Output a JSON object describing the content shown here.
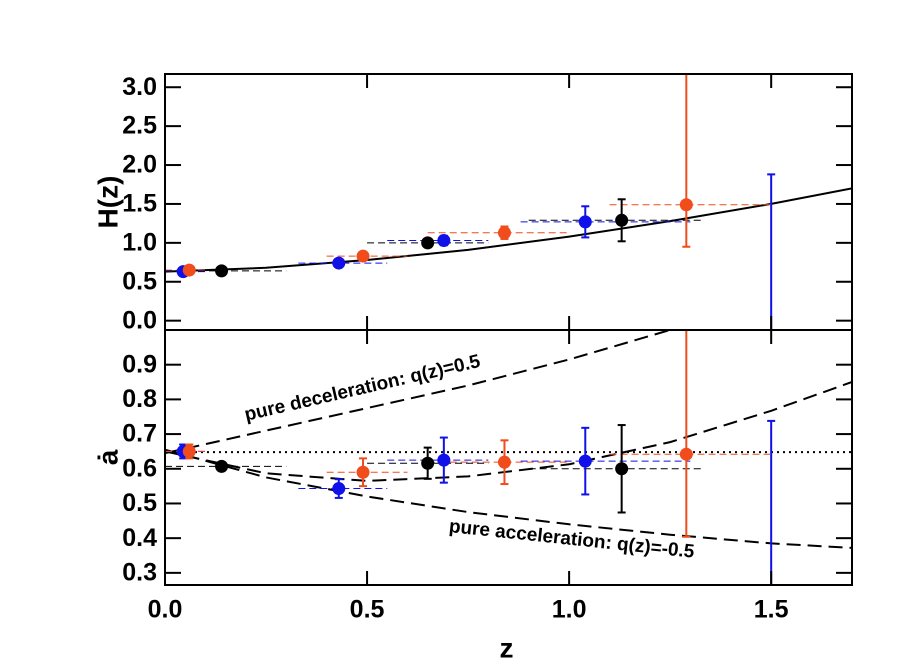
{
  "chart_data": [
    {
      "type": "scatter",
      "ylabel": "H(z)",
      "xlim": [
        0,
        1.7
      ],
      "ylim": [
        -0.12,
        3.17
      ],
      "xticks": [
        {
          "value": 0,
          "label": "0.0"
        },
        0.5,
        {
          "value": 1,
          "label": "1.0"
        },
        1.5
      ],
      "yticks": [
        {
          "value": 0,
          "label": "0.0"
        },
        0.5,
        {
          "value": 1,
          "label": "1.0"
        },
        1.5,
        {
          "value": 2,
          "label": "2.0"
        },
        2.5,
        {
          "value": 3,
          "label": "3.0"
        }
      ],
      "series": [
        {
          "color": "#1010e8",
          "x": [
            0.045,
            0.43,
            0.69,
            1.04
          ],
          "values": [
            0.63,
            0.74,
            1.03,
            1.27
          ],
          "yerr_low": [
            0.03,
            0.04,
            0.06,
            0.2
          ],
          "yerr_high": [
            0.03,
            0.04,
            0.06,
            0.2
          ],
          "xmin": [
            0.0,
            0.33,
            0.55,
            0.88
          ],
          "xmax": [
            0.1,
            0.55,
            0.8,
            1.3
          ]
        },
        {
          "color": "#f04c1c",
          "x": [
            0.06,
            0.49,
            0.84,
            1.29
          ],
          "values": [
            0.65,
            0.83,
            1.13,
            1.49
          ],
          "yerr_low": [
            0.03,
            0.04,
            0.08,
            0.54
          ],
          "yerr_high": [
            0.03,
            0.04,
            0.08,
            1.68
          ],
          "xmin": [
            0.0,
            0.4,
            0.65,
            1.1
          ],
          "xmax": [
            0.1,
            0.6,
            1.0,
            1.5
          ]
        },
        {
          "color": "#000000",
          "x": [
            0.14,
            0.65,
            1.13
          ],
          "values": [
            0.64,
            1.0,
            1.29
          ],
          "yerr_low": [
            0.03,
            0.04,
            0.27
          ],
          "yerr_high": [
            0.03,
            0.04,
            0.27
          ],
          "xmin": [
            0.0,
            0.5,
            0.9
          ],
          "xmax": [
            0.3,
            0.8,
            1.33
          ]
        }
      ],
      "error_bars": [
        {
          "color": "#1010e8",
          "x": 1.5,
          "low": -0.12,
          "high": 1.88
        }
      ],
      "lines": [
        {
          "style": "solid",
          "x": [
            0,
            0.25,
            0.5,
            0.75,
            1.0,
            1.25,
            1.5,
            1.7
          ],
          "values": [
            0.63,
            0.68,
            0.78,
            0.91,
            1.08,
            1.28,
            1.5,
            1.7
          ]
        }
      ]
    },
    {
      "type": "scatter",
      "ylabel": "ȧ",
      "xlabel": "z",
      "xlim": [
        0,
        1.7
      ],
      "ylim": [
        0.265,
        1.0
      ],
      "xticks": [
        {
          "value": 0,
          "label": "0.0"
        },
        0.5,
        {
          "value": 1,
          "label": "1.0"
        },
        1.5
      ],
      "yticks": [
        0.3,
        0.4,
        0.5,
        0.6,
        0.7,
        0.8,
        0.9
      ],
      "series": [
        {
          "color": "#1010e8",
          "x": [
            0.045,
            0.43,
            0.69,
            1.04
          ],
          "values": [
            0.65,
            0.543,
            0.625,
            0.622
          ],
          "yerr_low": [
            0.02,
            0.027,
            0.065,
            0.096
          ],
          "yerr_high": [
            0.02,
            0.027,
            0.065,
            0.096
          ],
          "xmin": [
            0.0,
            0.33,
            0.55,
            0.88
          ],
          "xmax": [
            0.1,
            0.55,
            0.8,
            1.3
          ]
        },
        {
          "color": "#f04c1c",
          "x": [
            0.06,
            0.49,
            0.84,
            1.29
          ],
          "values": [
            0.65,
            0.59,
            0.619,
            0.642
          ],
          "yerr_low": [
            0.02,
            0.04,
            0.063,
            0.238
          ],
          "yerr_high": [
            0.02,
            0.04,
            0.063,
            0.358
          ],
          "xmin": [
            0.0,
            0.4,
            0.65,
            1.1
          ],
          "xmax": [
            0.1,
            0.6,
            1.0,
            1.5
          ]
        },
        {
          "color": "#000000",
          "x": [
            0.14,
            0.65,
            1.13
          ],
          "values": [
            0.607,
            0.616,
            0.6
          ],
          "yerr_low": [
            0.01,
            0.045,
            0.126
          ],
          "yerr_high": [
            0.01,
            0.045,
            0.126
          ],
          "xmin": [
            0.0,
            0.5,
            0.9
          ],
          "xmax": [
            0.3,
            0.8,
            1.33
          ]
        }
      ],
      "error_bars": [
        {
          "color": "#1010e8",
          "x": 1.5,
          "low": 0.265,
          "high": 0.738
        }
      ],
      "lines": [
        {
          "style": "dotted",
          "x": [
            0,
            1.7
          ],
          "values": [
            0.648,
            0.648
          ]
        },
        {
          "style": "dashed",
          "x": [
            0,
            0.25,
            0.5,
            0.75,
            1.0,
            1.25
          ],
          "values": [
            0.645,
            0.71,
            0.775,
            0.84,
            0.915,
            1.0
          ]
        },
        {
          "style": "dashed",
          "x": [
            0,
            0.25,
            0.5,
            0.75,
            1.0,
            1.25,
            1.5,
            1.7
          ],
          "values": [
            0.655,
            0.575,
            0.52,
            0.475,
            0.44,
            0.41,
            0.385,
            0.372
          ]
        },
        {
          "style": "dashed",
          "x": [
            0,
            0.25,
            0.5,
            0.75,
            1.0,
            1.25,
            1.5,
            1.7
          ],
          "values": [
            0.65,
            0.587,
            0.565,
            0.578,
            0.613,
            0.677,
            0.767,
            0.85
          ]
        }
      ],
      "annotations": [
        "pure deceleration: q(z)=0.5",
        "pure acceleration: q(z)=-0.5"
      ]
    }
  ]
}
